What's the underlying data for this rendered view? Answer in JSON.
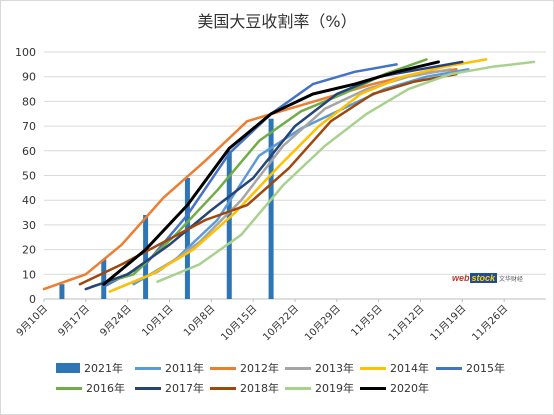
{
  "chart_data": {
    "type": "line",
    "title": "美国大豆收割率（%）",
    "xlabel": "",
    "ylabel": "",
    "x_ticks": [
      "9月10日",
      "9月17日",
      "9月24日",
      "10月1日",
      "10月8日",
      "10月15日",
      "10月22日",
      "10月29日",
      "11月5日",
      "11月12日",
      "11月19日",
      "11月26日"
    ],
    "xlim": [
      "9月10日",
      "12月3日"
    ],
    "ylim": [
      0,
      100
    ],
    "y_ticks": [
      0,
      10,
      20,
      30,
      40,
      50,
      60,
      70,
      80,
      90,
      100
    ],
    "grid": true,
    "legend_position": "bottom",
    "series": [
      {
        "name": "2021年",
        "kind": "bar",
        "color": "#2e75b6",
        "points": [
          [
            "9月13日",
            6
          ],
          [
            "9月20日",
            16
          ],
          [
            "9月27日",
            34
          ],
          [
            "10月4日",
            49
          ],
          [
            "10月11日",
            60
          ],
          [
            "10月18日",
            73
          ]
        ]
      },
      {
        "name": "2011年",
        "kind": "line",
        "color": "#5b9bd5",
        "points": [
          [
            "9月25日",
            6
          ],
          [
            "10月2日",
            16
          ],
          [
            "10月9日",
            32
          ],
          [
            "10月16日",
            58
          ],
          [
            "10月23日",
            69
          ],
          [
            "10月30日",
            77
          ],
          [
            "11月6日",
            85
          ],
          [
            "11月13日",
            90
          ],
          [
            "11月20日",
            93
          ]
        ]
      },
      {
        "name": "2012年",
        "kind": "line",
        "color": "#ed7d31",
        "points": [
          [
            "9月10日",
            4
          ],
          [
            "9月17日",
            10
          ],
          [
            "9月23日",
            22
          ],
          [
            "9月30日",
            41
          ],
          [
            "10月7日",
            56
          ],
          [
            "10月14日",
            72
          ],
          [
            "10月21日",
            77
          ],
          [
            "10月28日",
            82
          ],
          [
            "11月4日",
            87
          ],
          [
            "11月11日",
            91
          ],
          [
            "11月18日",
            93
          ]
        ]
      },
      {
        "name": "2013年",
        "kind": "line",
        "color": "#a5a5a5",
        "points": [
          [
            "9月22日",
            4
          ],
          [
            "9月29日",
            11
          ],
          [
            "10月6日",
            23
          ],
          [
            "10月13日",
            40
          ],
          [
            "10月20日",
            62
          ],
          [
            "10月27日",
            77
          ],
          [
            "11月3日",
            85
          ],
          [
            "11月10日",
            90
          ],
          [
            "11月17日",
            93
          ]
        ]
      },
      {
        "name": "2014年",
        "kind": "line",
        "color": "#ffc000",
        "points": [
          [
            "9月21日",
            3
          ],
          [
            "9月28日",
            10
          ],
          [
            "10月5日",
            20
          ],
          [
            "10月12日",
            35
          ],
          [
            "10月19日",
            53
          ],
          [
            "10月26日",
            70
          ],
          [
            "11月2日",
            83
          ],
          [
            "11月9日",
            90
          ],
          [
            "11月16日",
            94
          ],
          [
            "11月23日",
            97
          ]
        ]
      },
      {
        "name": "2015年",
        "kind": "line",
        "color": "#4472c4",
        "points": [
          [
            "9月20日",
            5
          ],
          [
            "9月27日",
            14
          ],
          [
            "10月4日",
            34
          ],
          [
            "10月11日",
            59
          ],
          [
            "10月18日",
            75
          ],
          [
            "10月25日",
            87
          ],
          [
            "11月1日",
            92
          ],
          [
            "11月8日",
            95
          ]
        ]
      },
      {
        "name": "2016年",
        "kind": "line",
        "color": "#70ad47",
        "points": [
          [
            "9月18日",
            5
          ],
          [
            "9月25日",
            10
          ],
          [
            "10月2日",
            26
          ],
          [
            "10月9日",
            44
          ],
          [
            "10月16日",
            64
          ],
          [
            "10月23日",
            76
          ],
          [
            "10月30日",
            83
          ],
          [
            "11月6日",
            91
          ],
          [
            "11月13日",
            97
          ]
        ]
      },
      {
        "name": "2017年",
        "kind": "line",
        "color": "#264478",
        "points": [
          [
            "9月17日",
            4
          ],
          [
            "9月24日",
            10
          ],
          [
            "10月1日",
            22
          ],
          [
            "10月8日",
            36
          ],
          [
            "10月15日",
            49
          ],
          [
            "10月22日",
            70
          ],
          [
            "10月29日",
            83
          ],
          [
            "11月5日",
            90
          ],
          [
            "11月12日",
            93
          ],
          [
            "11月19日",
            96
          ]
        ]
      },
      {
        "name": "2018年",
        "kind": "line",
        "color": "#9e480e",
        "points": [
          [
            "9月16日",
            6
          ],
          [
            "9月23日",
            14
          ],
          [
            "9月30日",
            23
          ],
          [
            "10月7日",
            32
          ],
          [
            "10月14日",
            38
          ],
          [
            "10月21日",
            53
          ],
          [
            "10月28日",
            72
          ],
          [
            "11月4日",
            83
          ],
          [
            "11月11日",
            88
          ],
          [
            "11月18日",
            91
          ]
        ]
      },
      {
        "name": "2019年",
        "kind": "line",
        "color": "#a9d18e",
        "points": [
          [
            "9月29日",
            7
          ],
          [
            "10月6日",
            14
          ],
          [
            "10月13日",
            26
          ],
          [
            "10月20日",
            46
          ],
          [
            "10月27日",
            62
          ],
          [
            "11月3日",
            75
          ],
          [
            "11月10日",
            85
          ],
          [
            "11月17日",
            91
          ],
          [
            "11月24日",
            94
          ],
          [
            "12月1日",
            96
          ]
        ]
      },
      {
        "name": "2020年",
        "kind": "line",
        "color": "#000000",
        "points": [
          [
            "9月20日",
            6
          ],
          [
            "9月27日",
            20
          ],
          [
            "10月4日",
            38
          ],
          [
            "10月11日",
            61
          ],
          [
            "10月18日",
            75
          ],
          [
            "10月25日",
            83
          ],
          [
            "11月1日",
            87
          ],
          [
            "11月8日",
            92
          ],
          [
            "11月15日",
            96
          ]
        ]
      }
    ]
  },
  "watermark": {
    "part1": "web",
    "part2": "stock",
    "part3": "文华财经"
  }
}
